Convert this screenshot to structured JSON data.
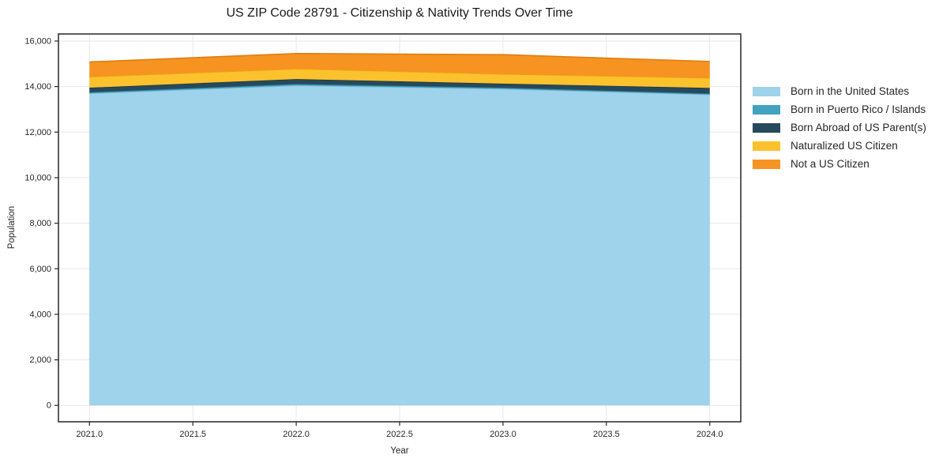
{
  "chart": {
    "title": "US ZIP Code 28791 - Citizenship & Nativity Trends Over Time",
    "xlabel": "Year",
    "ylabel": "Population"
  },
  "chart_data": {
    "type": "area",
    "stacked": true,
    "title": "US ZIP Code 28791 - Citizenship & Nativity Trends Over Time",
    "xlabel": "Year",
    "ylabel": "Population",
    "x": [
      2021,
      2022,
      2023,
      2024
    ],
    "series": [
      {
        "name": "Born in the United States",
        "color": "#9FD2EB",
        "edge": "#7FBCDD",
        "values": [
          13700,
          14050,
          13900,
          13650
        ]
      },
      {
        "name": "Born in Puerto Rico / Islands",
        "color": "#41A3C0",
        "edge": "#32899F",
        "values": [
          50,
          60,
          50,
          40
        ]
      },
      {
        "name": "Born Abroad of US Parent(s)",
        "color": "#27495C",
        "edge": "#1B3645",
        "values": [
          200,
          220,
          180,
          250
        ]
      },
      {
        "name": "Naturalized US Citizen",
        "color": "#FCC22D",
        "edge": "#E5A912",
        "values": [
          480,
          450,
          420,
          440
        ]
      },
      {
        "name": "Not a US Citizen",
        "color": "#F79321",
        "edge": "#DE7E0E",
        "values": [
          650,
          670,
          850,
          720
        ]
      }
    ],
    "totals": [
      15080,
      15450,
      15400,
      15100
    ],
    "x_view": [
      2020.85,
      2024.15
    ],
    "y_view": [
      -720,
      16310
    ],
    "x_ticks": {
      "values": [
        2021.0,
        2021.5,
        2022.0,
        2022.5,
        2023.0,
        2023.5,
        2024.0
      ],
      "labels": [
        "2021.0",
        "2021.5",
        "2022.0",
        "2022.5",
        "2023.0",
        "2023.5",
        "2024.0"
      ]
    },
    "y_ticks": {
      "values": [
        0,
        2000,
        4000,
        6000,
        8000,
        10000,
        12000,
        14000,
        16000
      ],
      "labels": [
        "0",
        "2,000",
        "4,000",
        "6,000",
        "8,000",
        "10,000",
        "12,000",
        "14,000",
        "16,000"
      ]
    },
    "grid": true,
    "grid_color": "#e7e7e7",
    "spine_color": "#262626",
    "legend_position": "right of plot, frameless"
  }
}
